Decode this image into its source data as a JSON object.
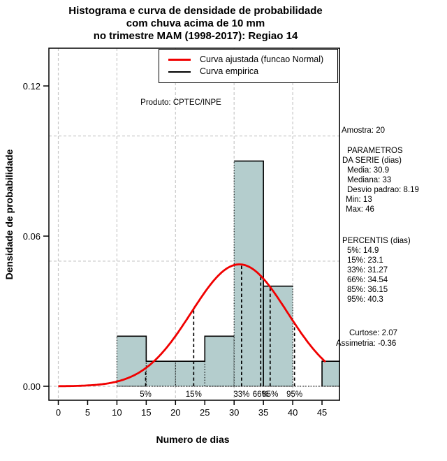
{
  "title": {
    "line1": "Histograma e curva de densidade de probabilidade",
    "line2": "com chuva acima de 10 mm",
    "line3": "no trimestre MAM (1998-2017): Regiao 14"
  },
  "annotations": {
    "product": "Produto: CPTEC/INPE"
  },
  "legend": {
    "items": [
      {
        "label": "Curva ajustada (funcao Normal)",
        "color": "#f00000"
      },
      {
        "label": "Curva empirica",
        "color": "#000000"
      }
    ]
  },
  "axes": {
    "xlabel": "Numero de dias",
    "ylabel": "Densidade de probabilidade",
    "x_ticks": [
      "0",
      "5",
      "10",
      "15",
      "20",
      "25",
      "30",
      "35",
      "40",
      "45"
    ],
    "y_ticks": [
      "0.00",
      "0.06",
      "0.12"
    ]
  },
  "stats_panel": {
    "amostra": "Amostra: 20",
    "param_header1": "PARAMETROS",
    "param_header2": "DA SERIE (dias)",
    "media": "Media: 30.9",
    "mediana": "Mediana: 33",
    "desvio": "Desvio padrao: 8.19",
    "min": "Min: 13",
    "max": "Max: 46",
    "percentis_header": "PERCENTIS (dias)",
    "p5": "5%: 14.9",
    "p15": "15%: 23.1",
    "p33": "33%: 31.27",
    "p66": "66%: 34.54",
    "p85": "85%: 36.15",
    "p95": "95%: 40.3",
    "curtose": "Curtose: 2.07",
    "assimetria": "Assimetria: -0.36"
  },
  "chart_data": {
    "type": "histogram+density",
    "title": "Histograma e curva de densidade de probabilidade com chuva acima de 10 mm no trimestre MAM (1998-2017): Regiao 14",
    "xlabel": "Numero de dias",
    "ylabel": "Densidade de probabilidade",
    "sample_size": 20,
    "x_range": [
      -1.6,
      48
    ],
    "y_range": [
      -0.0056,
      0.1351
    ],
    "x_tick_values": [
      0,
      5,
      10,
      15,
      20,
      25,
      30,
      35,
      40,
      45
    ],
    "y_tick_values": [
      0,
      0.06,
      0.12
    ],
    "x_gridlines": [
      0,
      10,
      20,
      30,
      40
    ],
    "y_gridlines": [
      0,
      0.05,
      0.1
    ],
    "grid_color": "#c8c8c8",
    "bar_fill": "#b4cdcd",
    "bins": [
      {
        "from": 10,
        "to": 15,
        "density": 0.02
      },
      {
        "from": 15,
        "to": 20,
        "density": 0.01
      },
      {
        "from": 20,
        "to": 25,
        "density": 0.01
      },
      {
        "from": 25,
        "to": 30,
        "density": 0.02
      },
      {
        "from": 30,
        "to": 35,
        "density": 0.09
      },
      {
        "from": 35,
        "to": 40,
        "density": 0.04
      },
      {
        "from": 45,
        "to": 50,
        "density": 0.01
      }
    ],
    "baseline": {
      "from": 10,
      "to": 48
    },
    "normal_curve": {
      "mean": 30.9,
      "sd": 8.19,
      "x_start": 0,
      "x_end": 45.6,
      "peak_density": 0.0487,
      "color": "#f00000"
    },
    "empirical_color": "#000000",
    "empirical_segments": [
      [
        [
          10,
          0.02
        ],
        [
          15,
          0.02
        ],
        [
          15,
          0.01
        ],
        [
          25,
          0.01
        ],
        [
          25,
          0.02
        ],
        [
          30,
          0.02
        ]
      ],
      [
        [
          30,
          0.09
        ],
        [
          35,
          0.09
        ],
        [
          35,
          0
        ]
      ],
      [
        [
          35,
          0.04
        ],
        [
          40,
          0.04
        ]
      ],
      [
        [
          45,
          0
        ],
        [
          45,
          0.01
        ],
        [
          48,
          0.01
        ]
      ]
    ],
    "percentile_lines": [
      {
        "label": "5%",
        "x": 14.9
      },
      {
        "label": "15%",
        "x": 23.1
      },
      {
        "label": "33%",
        "x": 31.27
      },
      {
        "label": "66%",
        "x": 34.54
      },
      {
        "label": "85%",
        "x": 36.15
      },
      {
        "label": "95%",
        "x": 40.3
      }
    ],
    "stats": {
      "amostra": 20,
      "media": 30.9,
      "mediana": 33,
      "desvio_padrao": 8.19,
      "min": 13,
      "max": 46,
      "curtose": 2.07,
      "assimetria": -0.36,
      "percentis": {
        "5": 14.9,
        "15": 23.1,
        "33": 31.27,
        "66": 34.54,
        "85": 36.15,
        "95": 40.3
      }
    }
  }
}
